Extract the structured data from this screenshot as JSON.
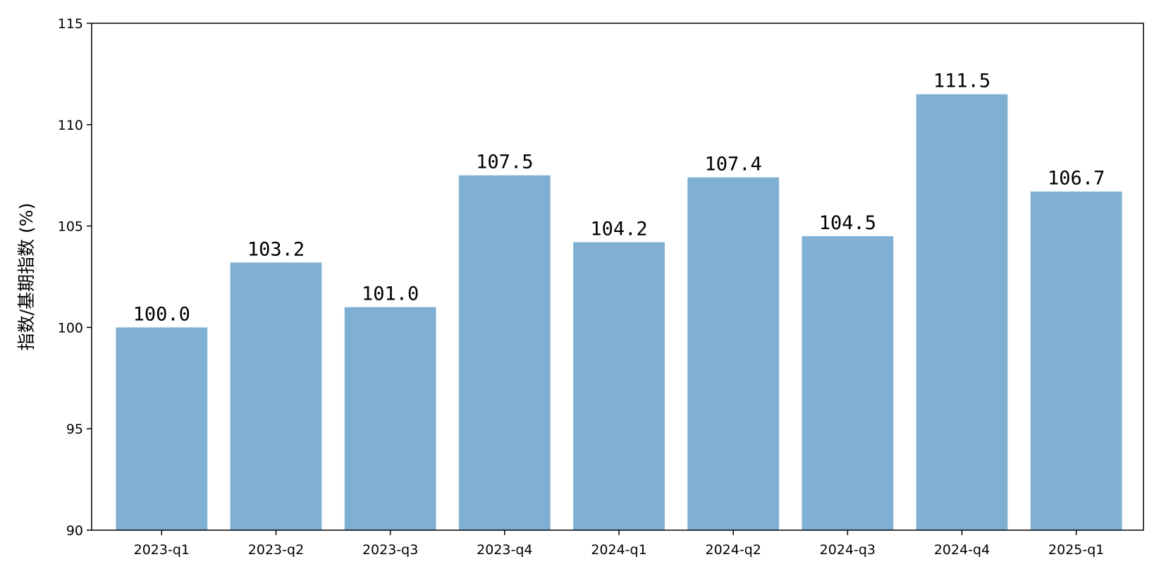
{
  "chart_data": {
    "type": "bar",
    "title": "",
    "xlabel": "",
    "ylabel": "指数/基期指数 (%)",
    "categories": [
      "2023-q1",
      "2023-q2",
      "2023-q3",
      "2023-q4",
      "2024-q1",
      "2024-q2",
      "2024-q3",
      "2024-q4",
      "2025-q1"
    ],
    "values": [
      100.0,
      103.2,
      101.0,
      107.5,
      104.2,
      107.4,
      104.5,
      111.5,
      106.7
    ],
    "data_labels": [
      "100.0",
      "103.2",
      "101.0",
      "107.5",
      "104.2",
      "107.4",
      "104.5",
      "111.5",
      "106.7"
    ],
    "ylim": [
      90,
      115
    ],
    "yticks": [
      90,
      95,
      100,
      105,
      110,
      115
    ],
    "grid": false,
    "bar_color": "#7fafd3"
  }
}
